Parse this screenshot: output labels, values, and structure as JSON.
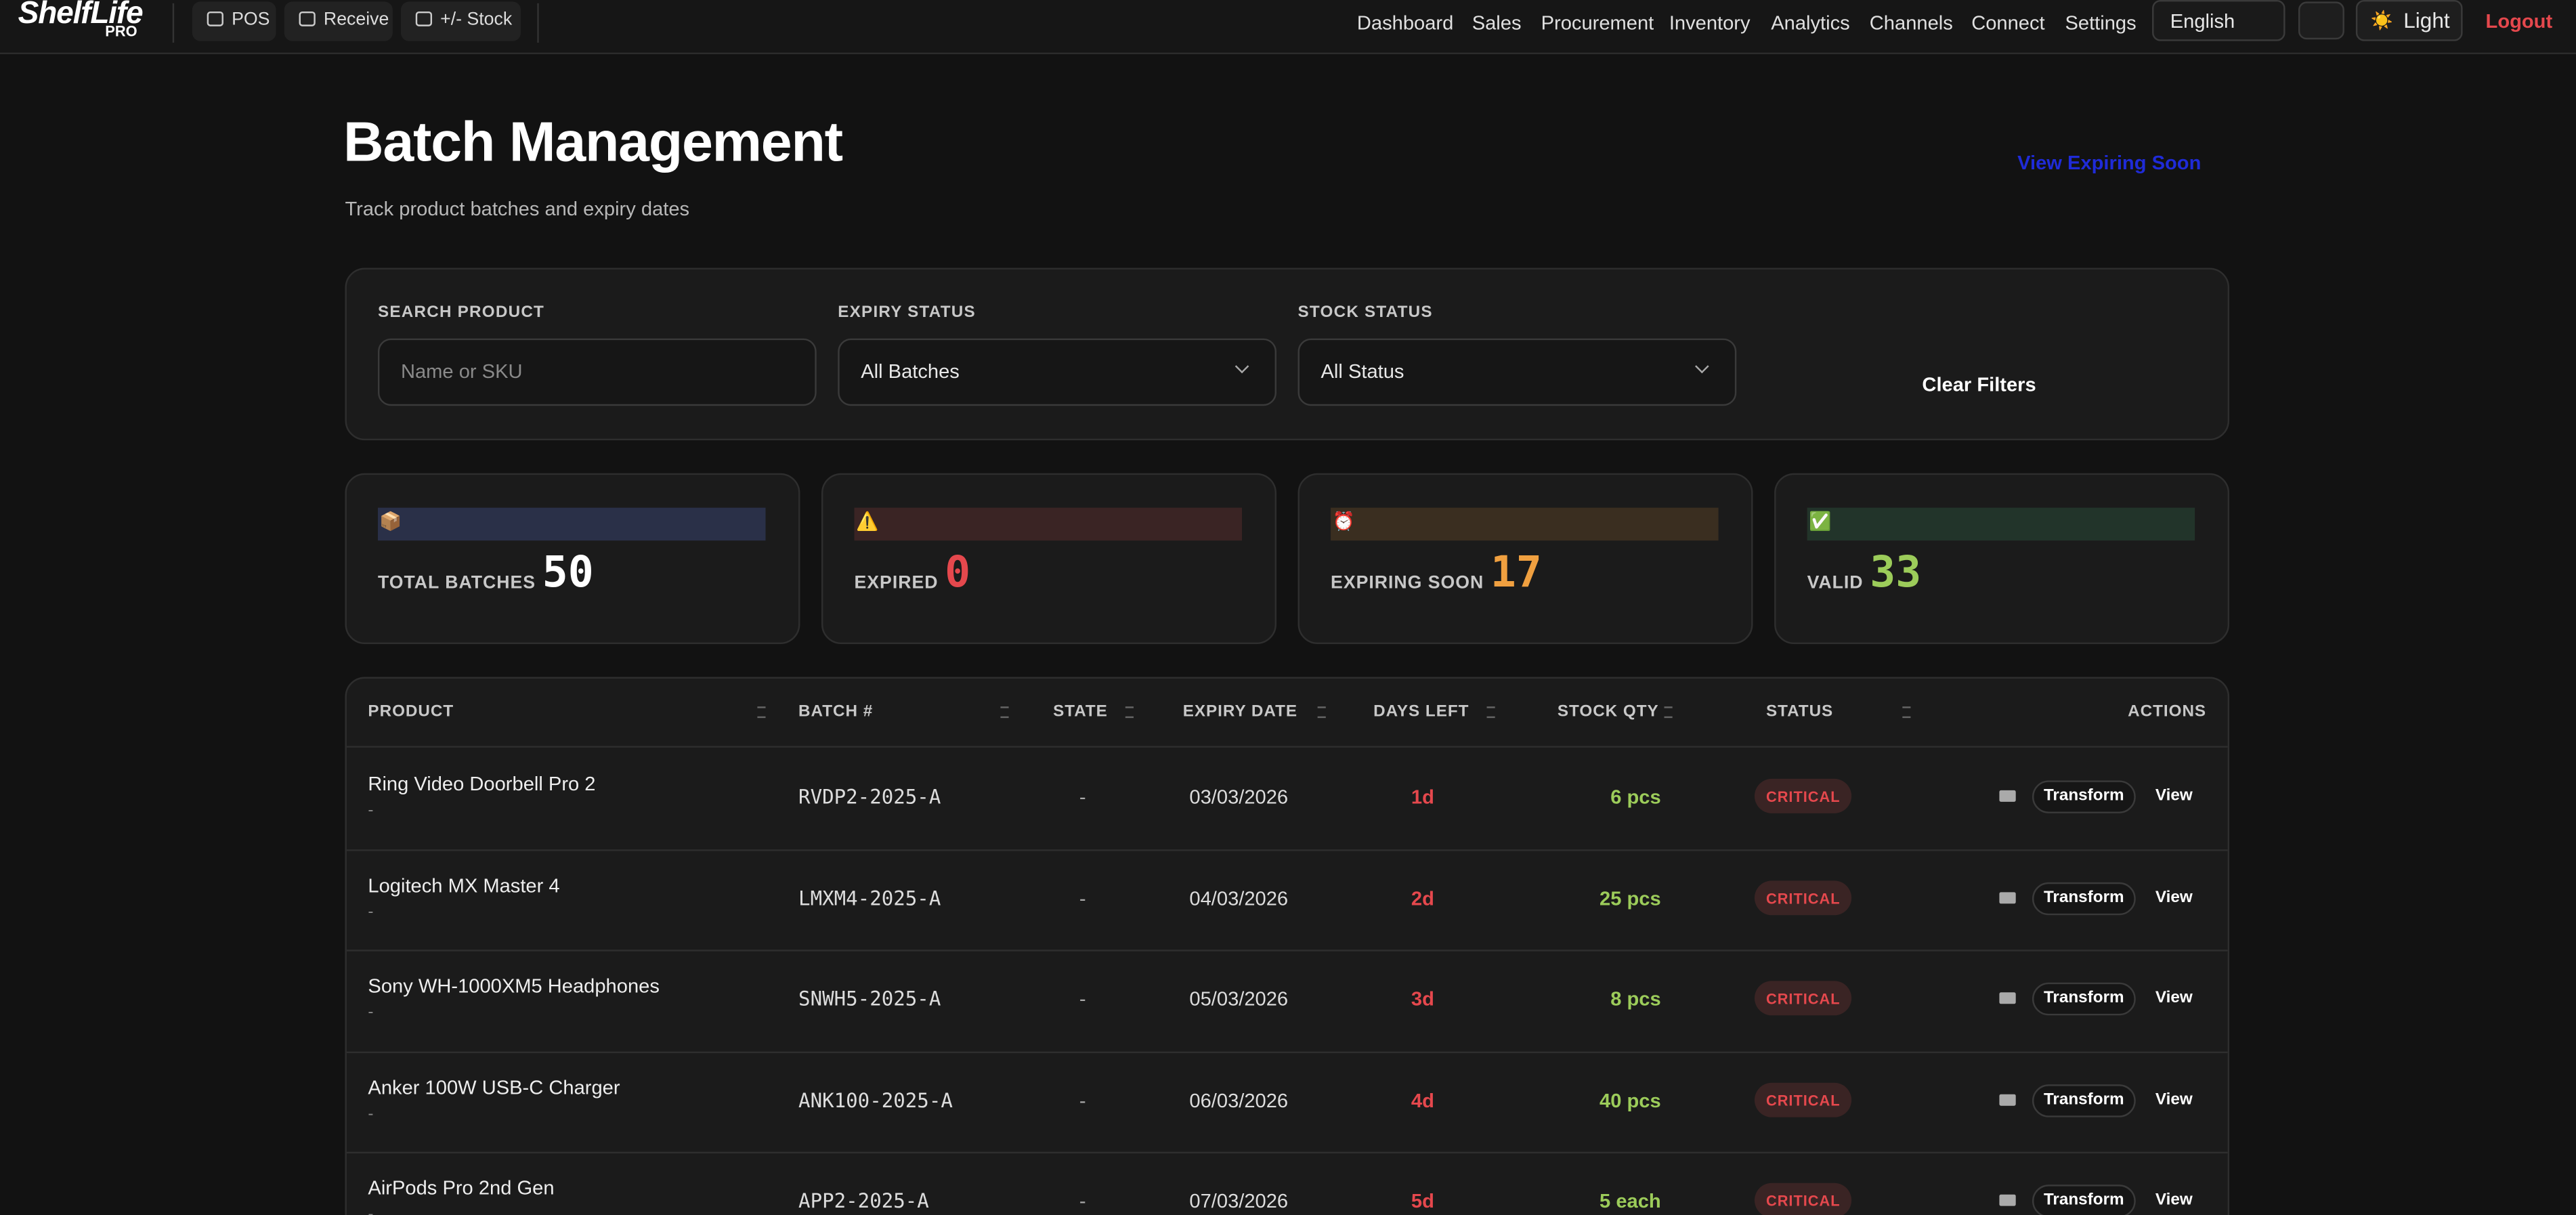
{
  "nav": {
    "logo": "ShelfLife",
    "logo_sub": "PRO",
    "quick": [
      "POS",
      "Receive",
      "+/- Stock"
    ],
    "links": [
      "Dashboard",
      "Sales",
      "Procurement",
      "Inventory",
      "Analytics",
      "Channels",
      "Connect",
      "Settings"
    ],
    "language": "English",
    "theme": "Light",
    "theme_icon": "☀️",
    "logout": "Logout"
  },
  "header": {
    "title": "Batch Management",
    "subtitle": "Track product batches and expiry dates",
    "link": "View Expiring Soon"
  },
  "filters": {
    "search_label": "SEARCH PRODUCT",
    "search_placeholder": "Name or SKU",
    "expiry_label": "EXPIRY STATUS",
    "expiry_value": "All Batches",
    "stock_label": "STOCK STATUS",
    "stock_value": "All Status",
    "clear": "Clear Filters"
  },
  "stats": [
    {
      "icon": "📦",
      "label": "TOTAL BATCHES",
      "value": 50
    },
    {
      "icon": "⚠️",
      "label": "EXPIRED",
      "value": 0
    },
    {
      "icon": "⏰",
      "label": "EXPIRING SOON",
      "value": 17
    },
    {
      "icon": "✅",
      "label": "VALID",
      "value": 33
    }
  ],
  "table": {
    "columns": [
      "PRODUCT",
      "BATCH #",
      "STATE",
      "EXPIRY DATE",
      "DAYS LEFT",
      "STOCK QTY",
      "STATUS",
      "ACTIONS"
    ],
    "rows": [
      [
        "Ring Video Doorbell Pro 2",
        "-",
        "RVDP2-2025-A",
        "-",
        "03/03/2026",
        "1d",
        "6 pcs",
        "CRITICAL",
        "Transform",
        "View"
      ],
      [
        "Logitech MX Master 4",
        "-",
        "LMXM4-2025-A",
        "-",
        "04/03/2026",
        "2d",
        "25 pcs",
        "CRITICAL",
        "Transform",
        "View"
      ],
      [
        "Sony WH-1000XM5 Headphones",
        "-",
        "SNWH5-2025-A",
        "-",
        "05/03/2026",
        "3d",
        "8 pcs",
        "CRITICAL",
        "Transform",
        "View"
      ],
      [
        "Anker 100W USB-C Charger",
        "-",
        "ANK100-2025-A",
        "-",
        "06/03/2026",
        "4d",
        "40 pcs",
        "CRITICAL",
        "Transform",
        "View"
      ],
      [
        "AirPods Pro 2nd Gen",
        "-",
        "APP2-2025-A",
        "-",
        "07/03/2026",
        "5d",
        "5 each",
        "CRITICAL",
        "Transform",
        "View"
      ]
    ]
  }
}
